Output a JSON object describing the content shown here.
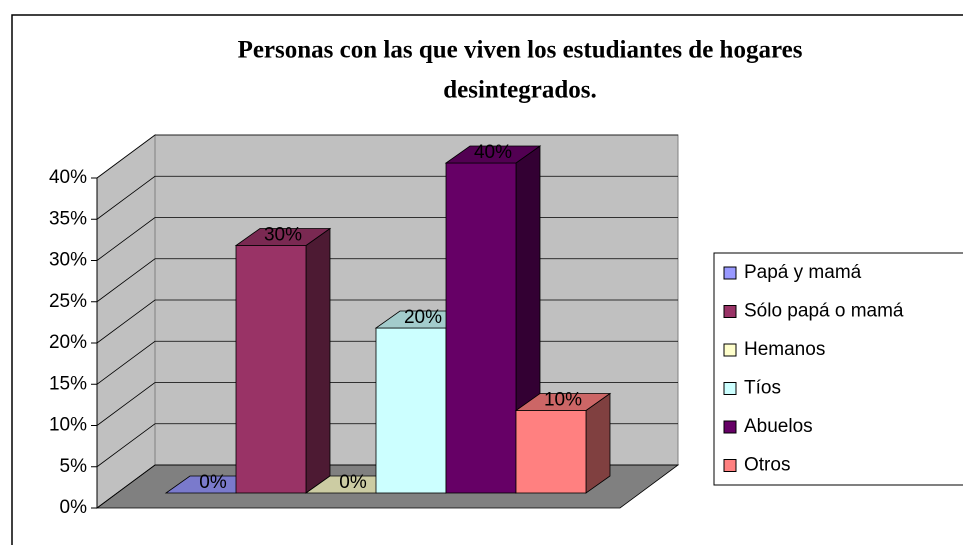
{
  "chart_data": {
    "type": "bar3d",
    "title": [
      "Personas con las que viven los estudiantes de hogares",
      "desintegrados."
    ],
    "series": [
      {
        "name": "Papá y mamá",
        "color": "#9999ff",
        "values": [
          0
        ],
        "value_labels": [
          "0%"
        ]
      },
      {
        "name": "Sólo papá o mamá",
        "color": "#993366",
        "values": [
          30
        ],
        "value_labels": [
          "30%"
        ]
      },
      {
        "name": "Hemanos",
        "color": "#ffffcc",
        "values": [
          0
        ],
        "value_labels": [
          "0%"
        ]
      },
      {
        "name": "Tíos",
        "color": "#ccffff",
        "values": [
          20
        ],
        "value_labels": [
          "20%"
        ]
      },
      {
        "name": "Abuelos",
        "color": "#660066",
        "values": [
          40
        ],
        "value_labels": [
          "40%"
        ]
      },
      {
        "name": "Otros",
        "color": "#ff8080",
        "values": [
          10
        ],
        "value_labels": [
          "10%"
        ]
      }
    ],
    "ylim": [
      0,
      40
    ],
    "yticks": [
      {
        "value": 0,
        "label": "0%"
      },
      {
        "value": 5,
        "label": "5%"
      },
      {
        "value": 10,
        "label": "10%"
      },
      {
        "value": 15,
        "label": "15%"
      },
      {
        "value": 20,
        "label": "20%"
      },
      {
        "value": 25,
        "label": "25%"
      },
      {
        "value": 30,
        "label": "30%"
      },
      {
        "value": 35,
        "label": "35%"
      },
      {
        "value": 40,
        "label": "40%"
      }
    ],
    "grid": true,
    "legend": "right"
  }
}
